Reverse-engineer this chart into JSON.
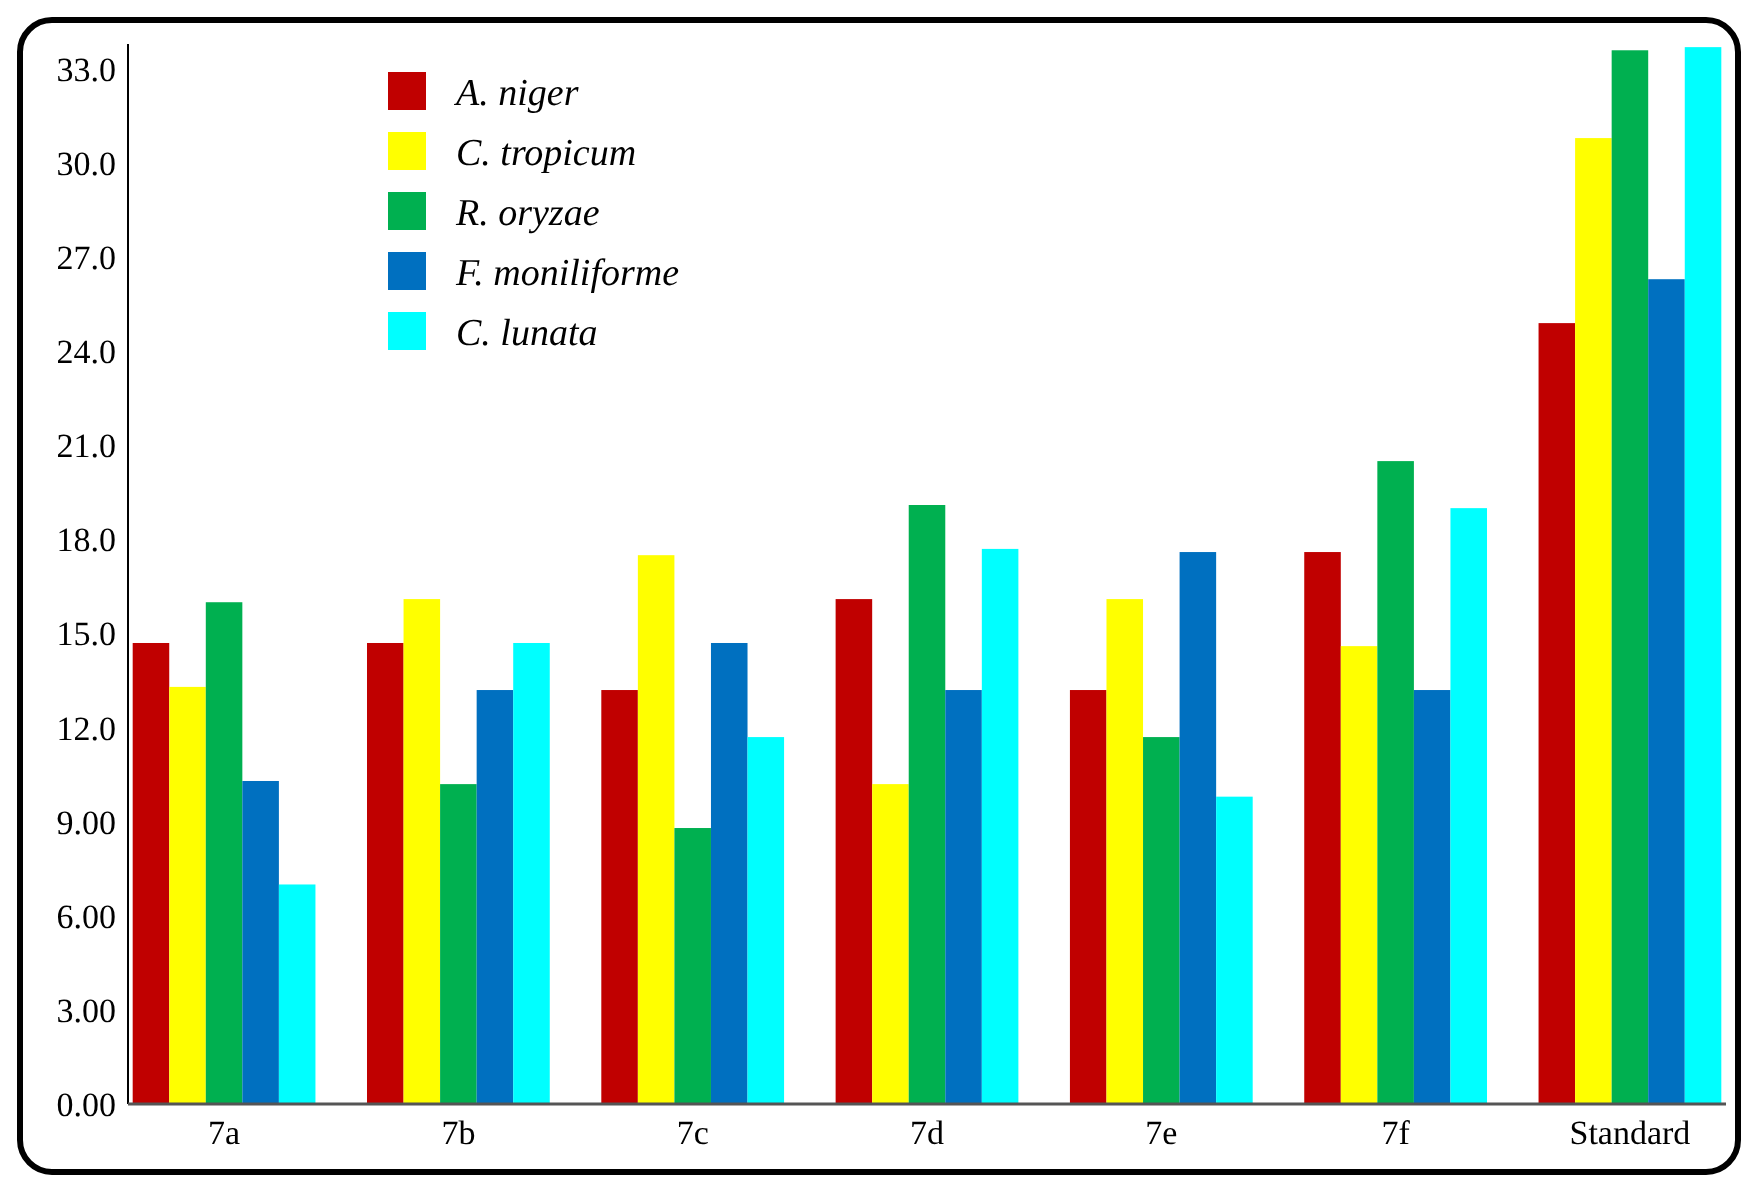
{
  "chart_data": {
    "type": "bar",
    "categories": [
      "7a",
      "7b",
      "7c",
      "7d",
      "7e",
      "7f",
      "Standard"
    ],
    "series": [
      {
        "name": "A. niger",
        "color": "#c00000",
        "values": [
          14.7,
          14.7,
          13.2,
          16.1,
          13.2,
          17.6,
          24.9
        ]
      },
      {
        "name": "C. tropicum",
        "color": "#ffff00",
        "values": [
          13.3,
          16.1,
          17.5,
          10.2,
          16.1,
          14.6,
          30.8
        ]
      },
      {
        "name": "R. oryzae",
        "color": "#00b050",
        "values": [
          16.0,
          10.2,
          8.8,
          19.1,
          11.7,
          20.5,
          33.6
        ]
      },
      {
        "name": "F. moniliforme",
        "color": "#0070c0",
        "values": [
          10.3,
          13.2,
          14.7,
          13.2,
          17.6,
          13.2,
          26.3
        ]
      },
      {
        "name": "C. lunata",
        "color": "#00ffff",
        "values": [
          7.0,
          14.7,
          11.7,
          17.7,
          9.8,
          19.0,
          33.7
        ]
      }
    ],
    "ylim": [
      0,
      33.8
    ],
    "yticks": [
      {
        "value": 0,
        "label": "0.00"
      },
      {
        "value": 3,
        "label": "3.00"
      },
      {
        "value": 6,
        "label": "6.00"
      },
      {
        "value": 9,
        "label": "9.00"
      },
      {
        "value": 12,
        "label": "12.0"
      },
      {
        "value": 15,
        "label": "15.0"
      },
      {
        "value": 18,
        "label": "18.0"
      },
      {
        "value": 21,
        "label": "21.0"
      },
      {
        "value": 24,
        "label": "24.0"
      },
      {
        "value": 27,
        "label": "27.0"
      },
      {
        "value": 30,
        "label": "30.0"
      },
      {
        "value": 33,
        "label": "33.0"
      }
    ],
    "legend": "top left",
    "grid": false
  }
}
